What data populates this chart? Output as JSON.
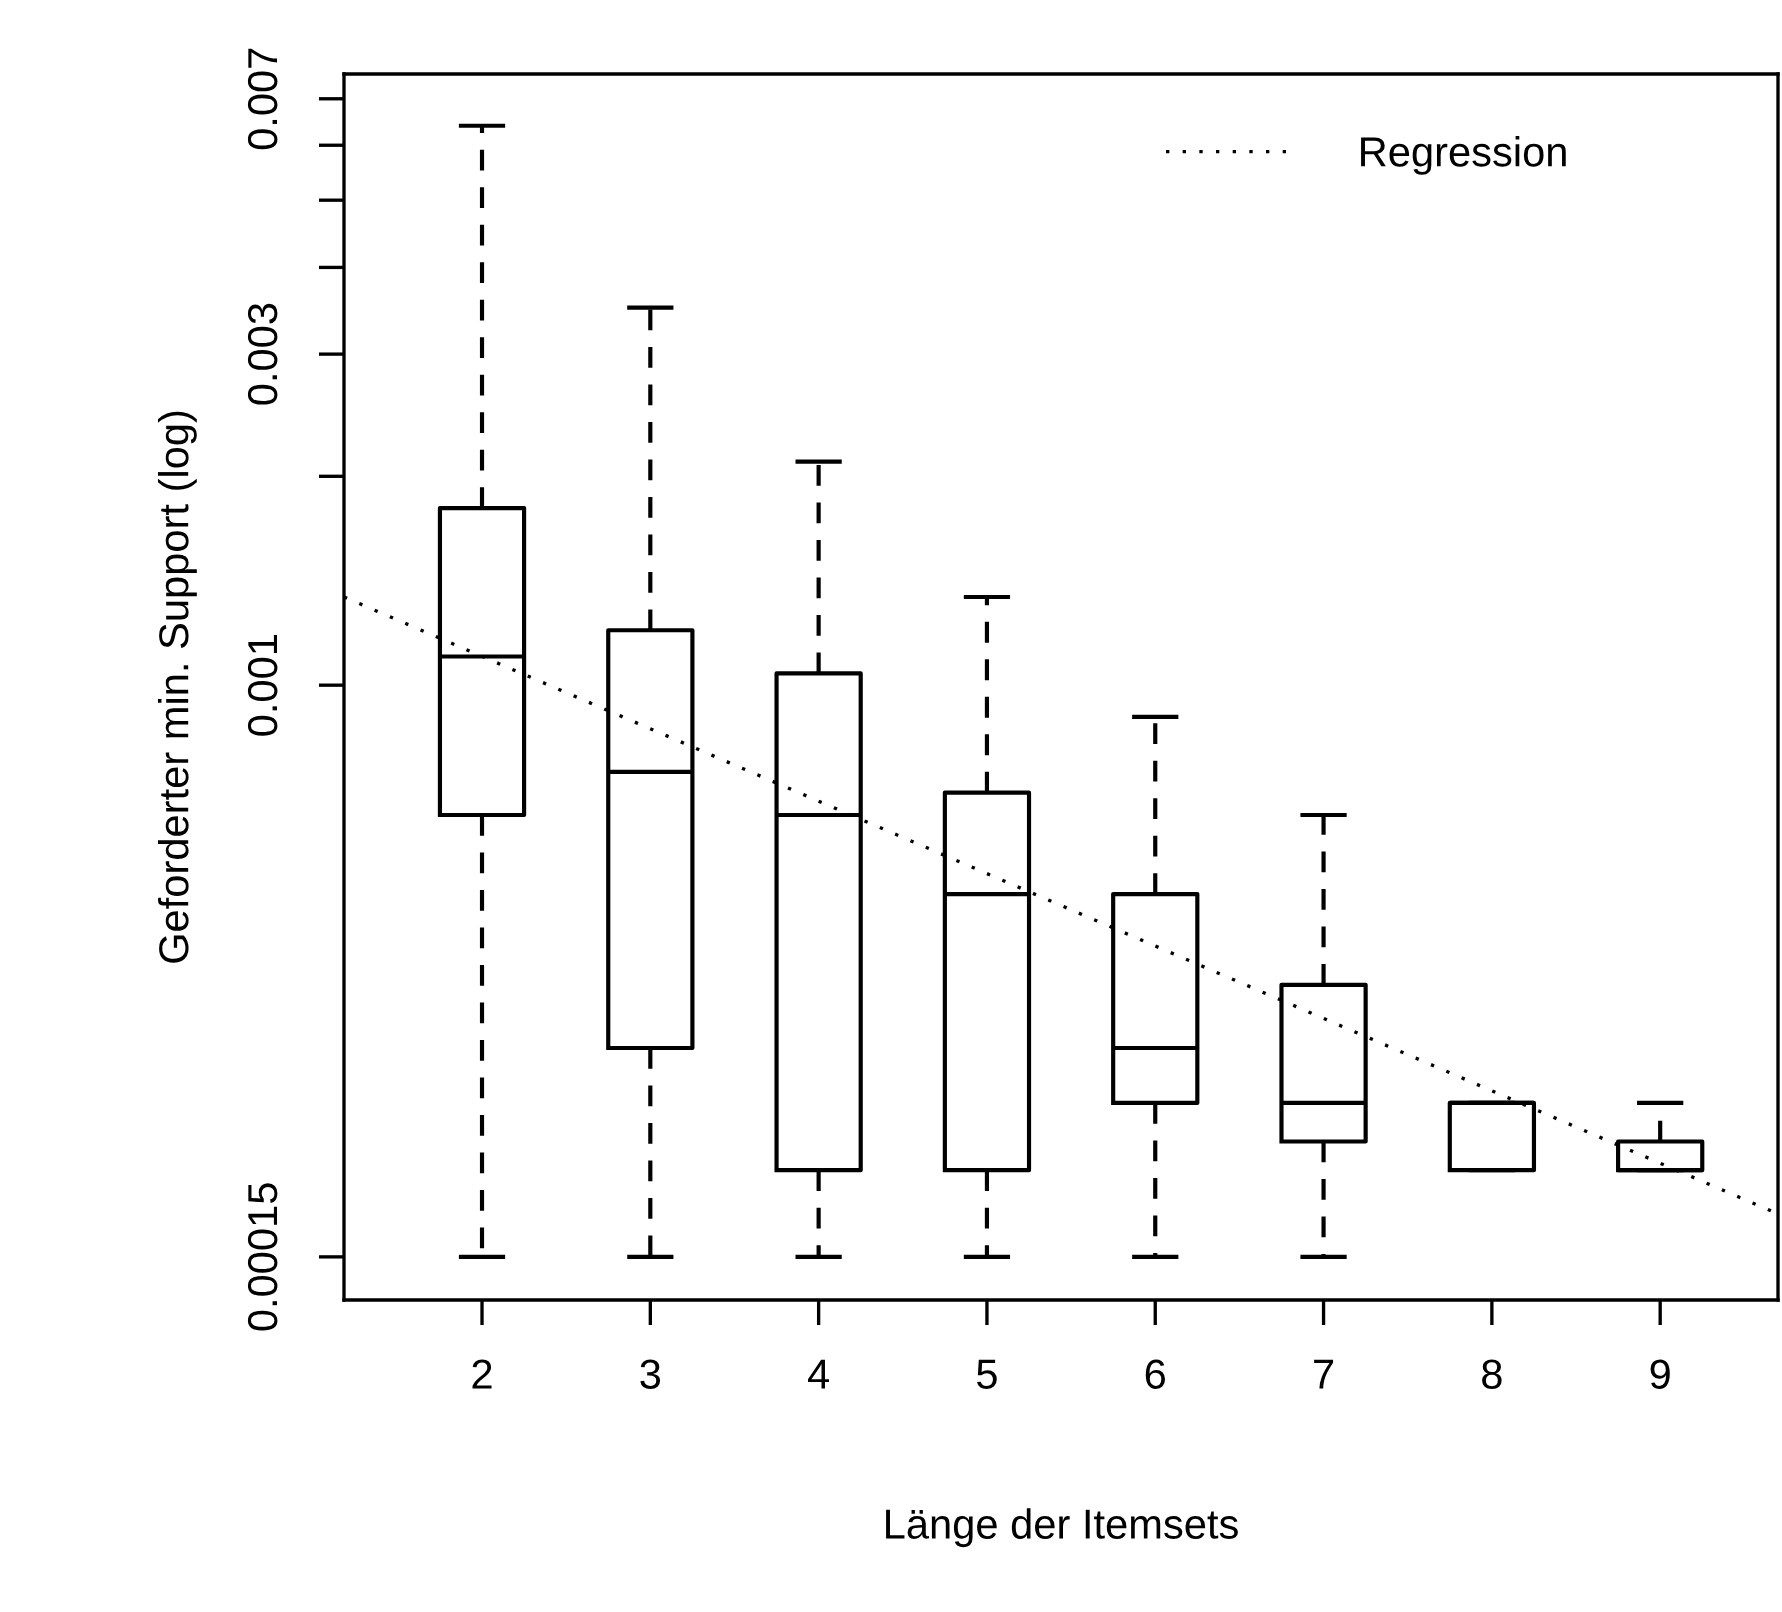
{
  "chart_data": {
    "type": "box",
    "xlabel": "Länge der Itemsets",
    "ylabel": "Geforderter min. Support (log)",
    "log": "y",
    "x": [
      2,
      3,
      4,
      5,
      6,
      7,
      8,
      9
    ],
    "xlim": [
      1.18,
      9.7
    ],
    "xticks": [
      2,
      3,
      4,
      5,
      6,
      7,
      8,
      9
    ],
    "ylim": [
      0.00013,
      0.0076
    ],
    "yticks": [
      0.00015,
      0.001,
      {
        "value": 0.002,
        "label": null
      },
      0.003,
      {
        "value": 0.004,
        "label": null
      },
      {
        "value": 0.005,
        "label": null
      },
      {
        "value": 0.006,
        "label": null
      },
      0.007
    ],
    "boxes": [
      {
        "low": 0.00015,
        "q1": 0.00065,
        "median": 0.0011,
        "q3": 0.0018,
        "high": 0.0064
      },
      {
        "low": 0.00015,
        "q1": 0.0003,
        "median": 0.00075,
        "q3": 0.0012,
        "high": 0.0035
      },
      {
        "low": 0.00015,
        "q1": 0.0002,
        "median": 0.00065,
        "q3": 0.00104,
        "high": 0.0021
      },
      {
        "low": 0.00015,
        "q1": 0.0002,
        "median": 0.0005,
        "q3": 0.0007,
        "high": 0.00134
      },
      {
        "low": 0.00015,
        "q1": 0.00025,
        "median": 0.0003,
        "q3": 0.0005,
        "high": 0.0009
      },
      {
        "low": 0.00015,
        "q1": 0.00022,
        "median": 0.00025,
        "q3": 0.00037,
        "high": 0.00065
      },
      {
        "low": 0.0002,
        "q1": 0.0002,
        "median": 0.00025,
        "q3": 0.00025,
        "high": 0.00025
      },
      {
        "low": 0.0002,
        "q1": 0.0002,
        "median": 0.0002,
        "q3": 0.00022,
        "high": 0.00025
      }
    ],
    "series": [
      {
        "type": "line",
        "name": "Regression",
        "color": "#000000",
        "line_style": "dotted",
        "x": [
          1.18,
          9.7
        ],
        "values": [
          0.00134,
          0.000173
        ]
      }
    ],
    "legend": "top right",
    "grid": false
  }
}
